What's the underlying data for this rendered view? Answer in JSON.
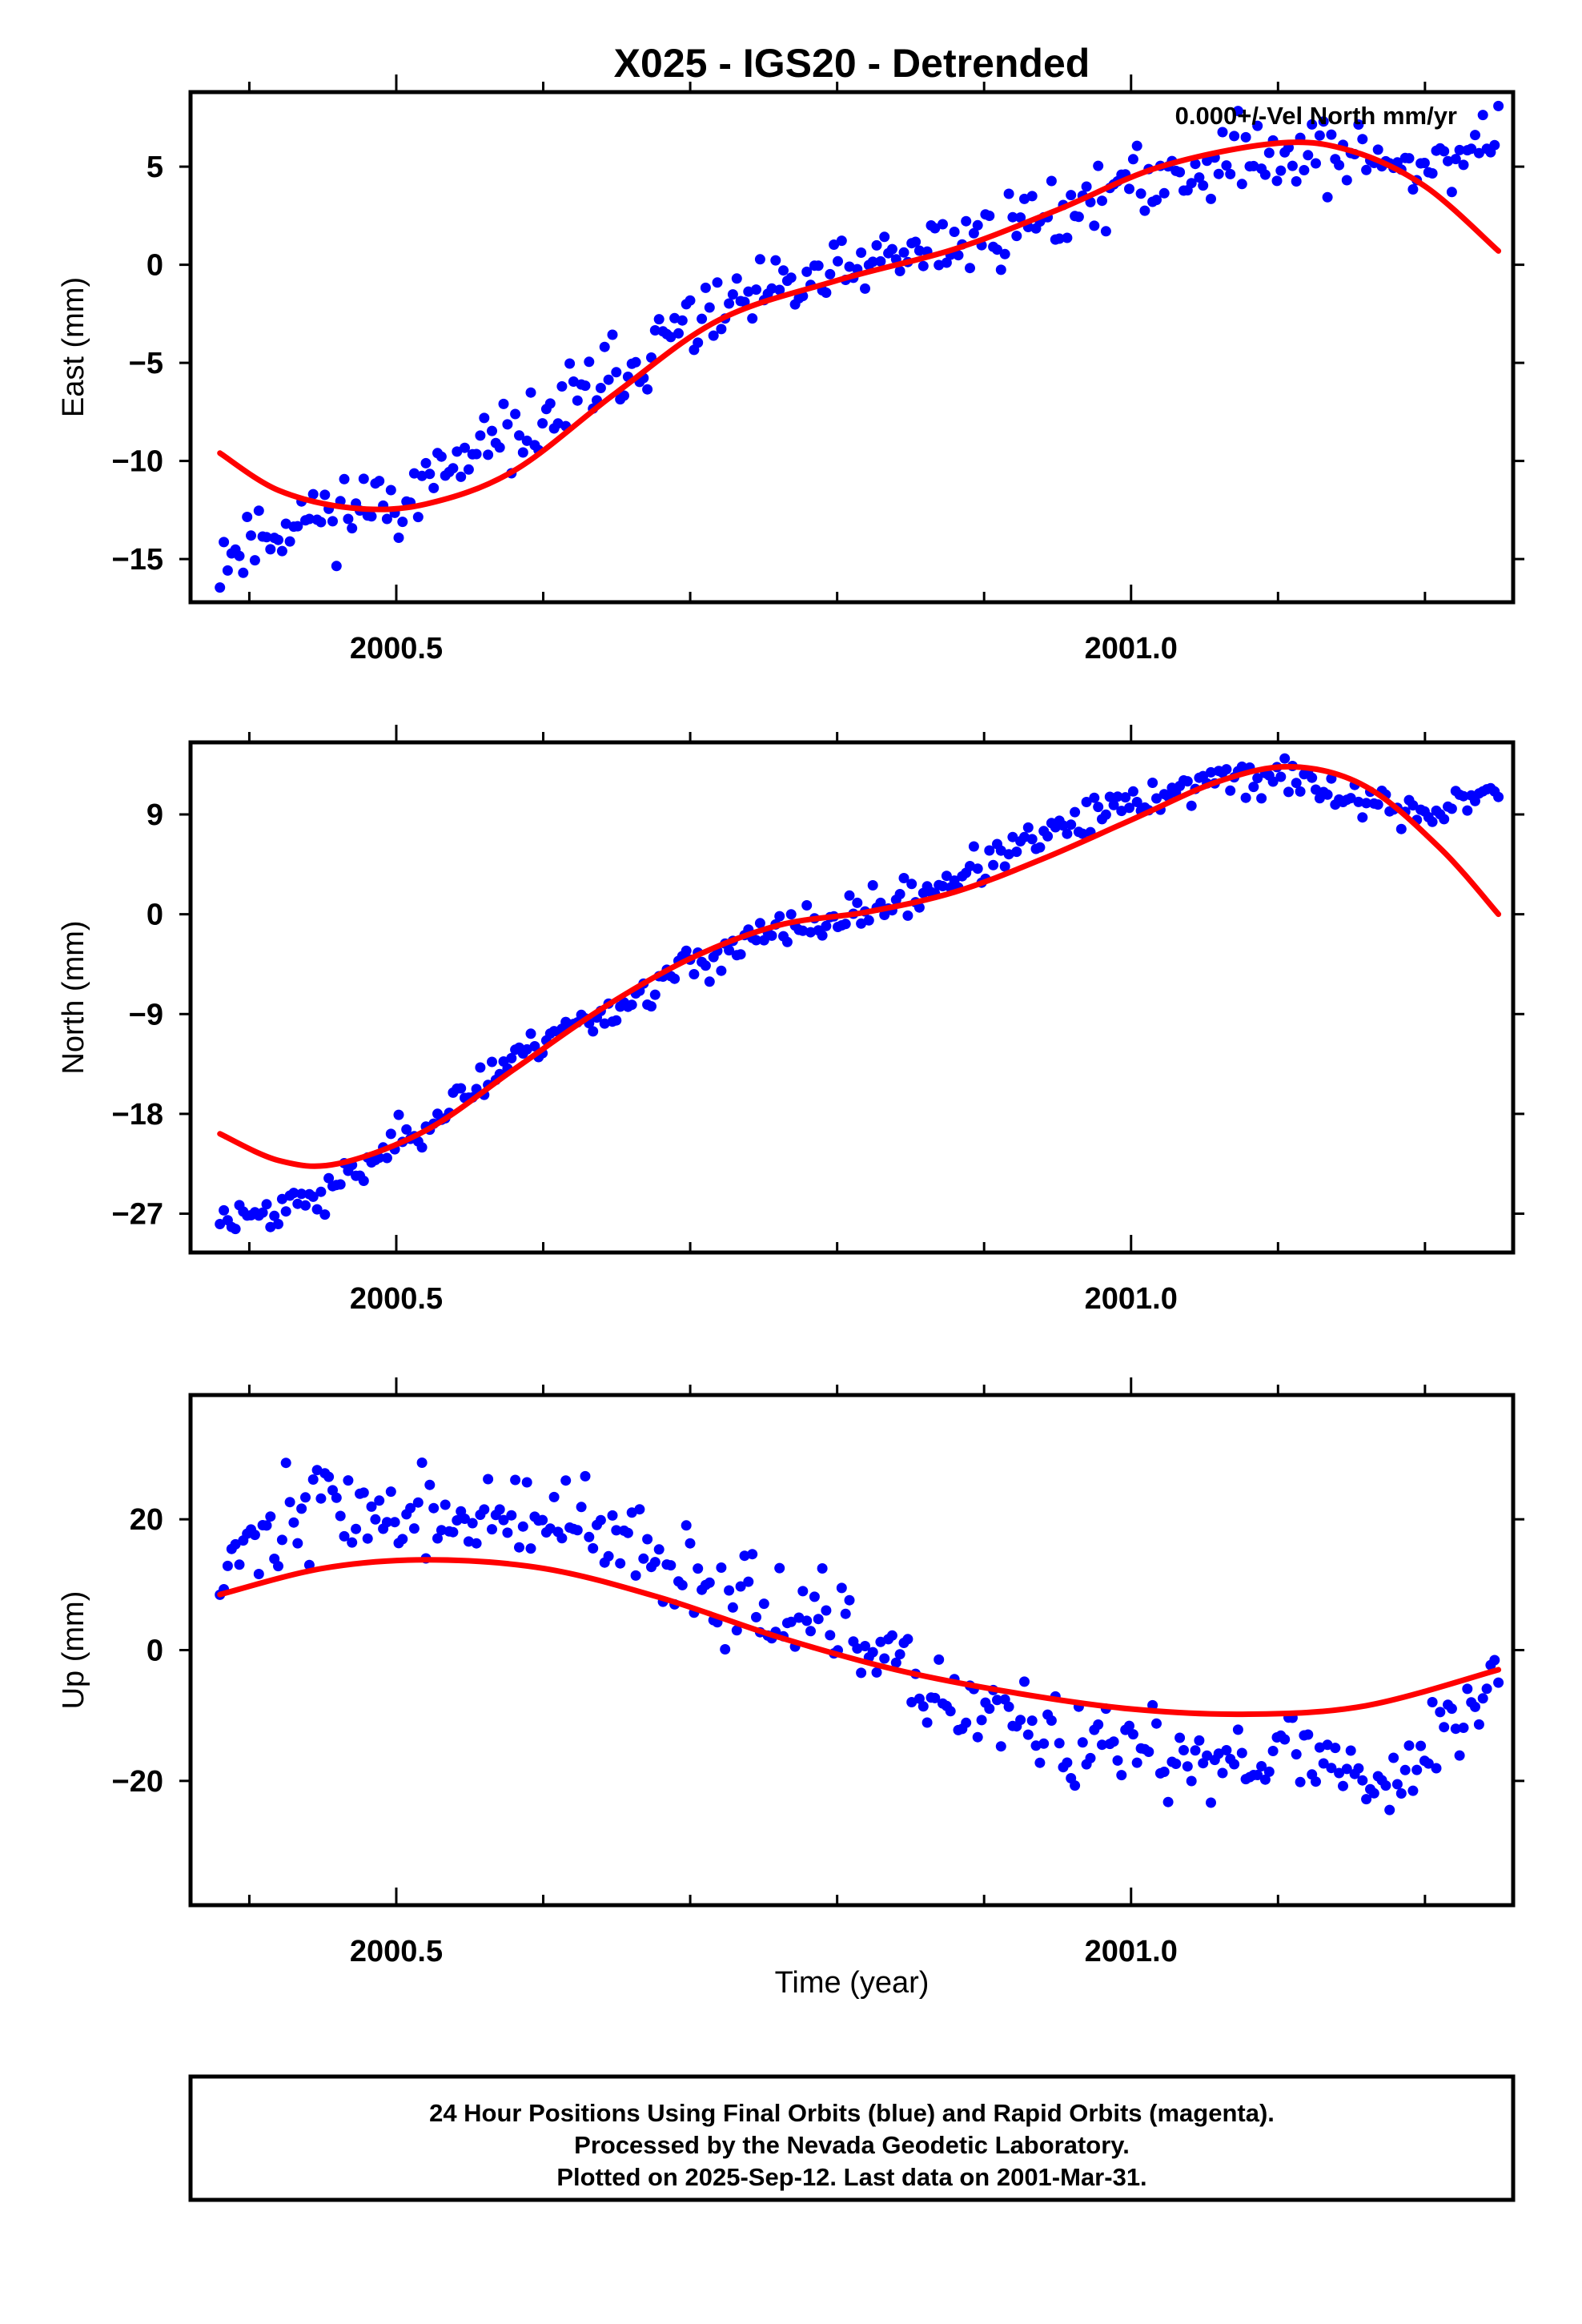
{
  "figure": {
    "title": "X025 - IGS20 - Detrended",
    "xlabel": "Time (year)",
    "caption_lines": [
      "24 Hour Positions Using Final Orbits (blue) and Rapid Orbits (magenta).",
      "Processed by the Nevada Geodetic Laboratory.",
      "Plotted on 2025-Sep-12. Last data on 2001-Mar-31."
    ],
    "colors": {
      "points": "#0000ff",
      "model": "#ff0000",
      "frame": "#000000"
    }
  },
  "chart_data": [
    {
      "type": "scatter",
      "ylabel": "East (mm)",
      "annotation": "0.000+/-Vel North mm/yr",
      "xlim": [
        2000.36,
        2001.26
      ],
      "ylim": [
        -17.2,
        8.8
      ],
      "xticks": [
        2000.5,
        2001.0
      ],
      "xtick_labels": [
        "2000.5",
        "2001.0"
      ],
      "yticks": [
        -15,
        -10,
        -5,
        0,
        5
      ],
      "ytick_labels": [
        "−15",
        "−10",
        "−5",
        "0",
        "5"
      ],
      "x_start": 2000.38,
      "x_end": 2001.25,
      "anchors": [
        [
          2000.38,
          -14.8
        ],
        [
          2000.43,
          -13.0
        ],
        [
          2000.5,
          -12.0
        ],
        [
          2000.6,
          -8.0
        ],
        [
          2000.7,
          -3.0
        ],
        [
          2000.8,
          -0.5
        ],
        [
          2000.9,
          1.5
        ],
        [
          2001.0,
          4.0
        ],
        [
          2001.1,
          6.0
        ],
        [
          2001.2,
          5.0
        ],
        [
          2001.25,
          6.5
        ]
      ],
      "noise": 1.3,
      "seed": 11,
      "model": [
        [
          2000.38,
          -9.6
        ],
        [
          2000.42,
          -11.5
        ],
        [
          2000.47,
          -12.4
        ],
        [
          2000.52,
          -12.2
        ],
        [
          2000.58,
          -10.5
        ],
        [
          2000.65,
          -6.5
        ],
        [
          2000.72,
          -2.8
        ],
        [
          2000.8,
          -0.8
        ],
        [
          2000.88,
          0.8
        ],
        [
          2000.95,
          2.8
        ],
        [
          2001.02,
          5.0
        ],
        [
          2001.1,
          6.2
        ],
        [
          2001.15,
          5.8
        ],
        [
          2001.2,
          4.0
        ],
        [
          2001.25,
          0.7
        ]
      ]
    },
    {
      "type": "scatter",
      "ylabel": "North (mm)",
      "xlim": [
        2000.36,
        2001.26
      ],
      "ylim": [
        -30.5,
        15.5
      ],
      "xticks": [
        2000.5,
        2001.0
      ],
      "xtick_labels": [
        "2000.5",
        "2001.0"
      ],
      "yticks": [
        -27,
        -18,
        -9,
        0,
        9
      ],
      "ytick_labels": [
        "−27",
        "−18",
        "−9",
        "0",
        "9"
      ],
      "x_start": 2000.38,
      "x_end": 2001.25,
      "anchors": [
        [
          2000.38,
          -27.5
        ],
        [
          2000.45,
          -25.5
        ],
        [
          2000.5,
          -20.5
        ],
        [
          2000.55,
          -16.0
        ],
        [
          2000.6,
          -11.0
        ],
        [
          2000.65,
          -8.5
        ],
        [
          2000.7,
          -4.5
        ],
        [
          2000.75,
          -2.0
        ],
        [
          2000.8,
          -0.5
        ],
        [
          2000.85,
          1.5
        ],
        [
          2000.9,
          4.5
        ],
        [
          2000.95,
          7.5
        ],
        [
          2001.0,
          10.0
        ],
        [
          2001.05,
          12.0
        ],
        [
          2001.1,
          12.5
        ],
        [
          2001.15,
          10.5
        ],
        [
          2001.2,
          9.0
        ],
        [
          2001.25,
          11.0
        ]
      ],
      "noise": 1.2,
      "seed": 23,
      "model": [
        [
          2000.38,
          -19.8
        ],
        [
          2000.42,
          -22.2
        ],
        [
          2000.46,
          -22.5
        ],
        [
          2000.52,
          -19.5
        ],
        [
          2000.58,
          -14.0
        ],
        [
          2000.64,
          -8.5
        ],
        [
          2000.7,
          -4.0
        ],
        [
          2000.76,
          -1.0
        ],
        [
          2000.82,
          0.2
        ],
        [
          2000.88,
          2.0
        ],
        [
          2000.94,
          5.0
        ],
        [
          2001.0,
          8.5
        ],
        [
          2001.06,
          12.0
        ],
        [
          2001.11,
          13.3
        ],
        [
          2001.16,
          11.5
        ],
        [
          2001.21,
          6.0
        ],
        [
          2001.25,
          0.0
        ]
      ]
    },
    {
      "type": "scatter",
      "ylabel": "Up (mm)",
      "xlim": [
        2000.36,
        2001.26
      ],
      "ylim": [
        -39,
        39
      ],
      "xticks": [
        2000.5,
        2001.0
      ],
      "xtick_labels": [
        "2000.5",
        "2001.0"
      ],
      "yticks": [
        -20,
        0,
        20
      ],
      "ytick_labels": [
        "−20",
        "0",
        "20"
      ],
      "x_start": 2000.38,
      "x_end": 2001.25,
      "anchors": [
        [
          2000.38,
          14.0
        ],
        [
          2000.45,
          23.0
        ],
        [
          2000.5,
          20.0
        ],
        [
          2000.6,
          20.0
        ],
        [
          2000.7,
          12.0
        ],
        [
          2000.8,
          2.0
        ],
        [
          2000.9,
          -10.0
        ],
        [
          2001.0,
          -17.0
        ],
        [
          2001.1,
          -15.0
        ],
        [
          2001.18,
          -20.0
        ],
        [
          2001.25,
          -4.0
        ]
      ],
      "noise": 5.0,
      "seed": 37,
      "model": [
        [
          2000.38,
          8.5
        ],
        [
          2000.45,
          12.5
        ],
        [
          2000.52,
          13.8
        ],
        [
          2000.6,
          12.5
        ],
        [
          2000.68,
          8.0
        ],
        [
          2000.76,
          2.0
        ],
        [
          2000.84,
          -3.0
        ],
        [
          2000.92,
          -6.5
        ],
        [
          2001.0,
          -9.0
        ],
        [
          2001.08,
          -9.8
        ],
        [
          2001.16,
          -8.5
        ],
        [
          2001.25,
          -3.0
        ]
      ]
    }
  ]
}
